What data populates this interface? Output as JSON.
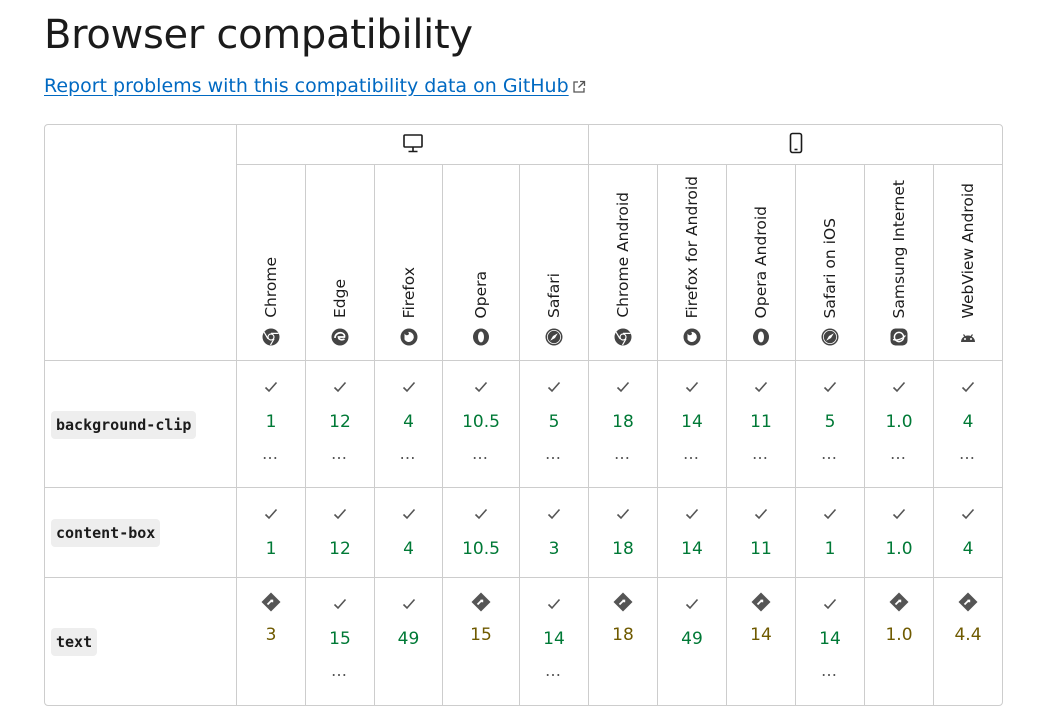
{
  "page": {
    "title": "Browser compatibility",
    "report_link": "Report problems with this compatibility data on GitHub"
  },
  "platforms": [
    {
      "name": "desktop",
      "icon": "desktop-icon"
    },
    {
      "name": "mobile",
      "icon": "mobile-icon"
    }
  ],
  "browsers": [
    {
      "name": "Chrome",
      "icon": "chrome-icon"
    },
    {
      "name": "Edge",
      "icon": "edge-icon"
    },
    {
      "name": "Firefox",
      "icon": "firefox-icon"
    },
    {
      "name": "Opera",
      "icon": "opera-icon"
    },
    {
      "name": "Safari",
      "icon": "safari-icon"
    },
    {
      "name": "Chrome Android",
      "icon": "chrome-icon"
    },
    {
      "name": "Firefox for Android",
      "icon": "firefox-icon"
    },
    {
      "name": "Opera Android",
      "icon": "opera-icon"
    },
    {
      "name": "Safari on iOS",
      "icon": "safari-icon"
    },
    {
      "name": "Samsung Internet",
      "icon": "samsung-internet-icon"
    },
    {
      "name": "WebView Android",
      "icon": "android-icon"
    }
  ],
  "colors": {
    "supported": "#007936",
    "partial": "#6f5a00",
    "link": "#0069c2",
    "border": "#cdcdcd"
  },
  "features": [
    {
      "name": "background-clip",
      "cells": [
        {
          "status": "yes",
          "version": "1",
          "more": "…"
        },
        {
          "status": "yes",
          "version": "12",
          "more": "…"
        },
        {
          "status": "yes",
          "version": "4",
          "more": "…"
        },
        {
          "status": "yes",
          "version": "10.5",
          "more": "…"
        },
        {
          "status": "yes",
          "version": "5",
          "more": "…"
        },
        {
          "status": "yes",
          "version": "18",
          "more": "…"
        },
        {
          "status": "yes",
          "version": "14",
          "more": "…"
        },
        {
          "status": "yes",
          "version": "11",
          "more": "…"
        },
        {
          "status": "yes",
          "version": "5",
          "more": "…"
        },
        {
          "status": "yes",
          "version": "1.0",
          "more": "…"
        },
        {
          "status": "yes",
          "version": "4",
          "more": "…"
        }
      ]
    },
    {
      "name": "content-box",
      "cells": [
        {
          "status": "yes",
          "version": "1",
          "more": ""
        },
        {
          "status": "yes",
          "version": "12",
          "more": ""
        },
        {
          "status": "yes",
          "version": "4",
          "more": ""
        },
        {
          "status": "yes",
          "version": "10.5",
          "more": ""
        },
        {
          "status": "yes",
          "version": "3",
          "more": ""
        },
        {
          "status": "yes",
          "version": "18",
          "more": ""
        },
        {
          "status": "yes",
          "version": "14",
          "more": ""
        },
        {
          "status": "yes",
          "version": "11",
          "more": ""
        },
        {
          "status": "yes",
          "version": "1",
          "more": ""
        },
        {
          "status": "yes",
          "version": "1.0",
          "more": ""
        },
        {
          "status": "yes",
          "version": "4",
          "more": ""
        }
      ]
    },
    {
      "name": "text",
      "cells": [
        {
          "status": "partial",
          "version": "3",
          "more": ""
        },
        {
          "status": "yes",
          "version": "15",
          "more": "…"
        },
        {
          "status": "yes",
          "version": "49",
          "more": ""
        },
        {
          "status": "partial",
          "version": "15",
          "more": ""
        },
        {
          "status": "yes",
          "version": "14",
          "more": "…"
        },
        {
          "status": "partial",
          "version": "18",
          "more": ""
        },
        {
          "status": "yes",
          "version": "49",
          "more": ""
        },
        {
          "status": "partial",
          "version": "14",
          "more": ""
        },
        {
          "status": "yes",
          "version": "14",
          "more": "…"
        },
        {
          "status": "partial",
          "version": "1.0",
          "more": ""
        },
        {
          "status": "partial",
          "version": "4.4",
          "more": ""
        }
      ]
    }
  ]
}
